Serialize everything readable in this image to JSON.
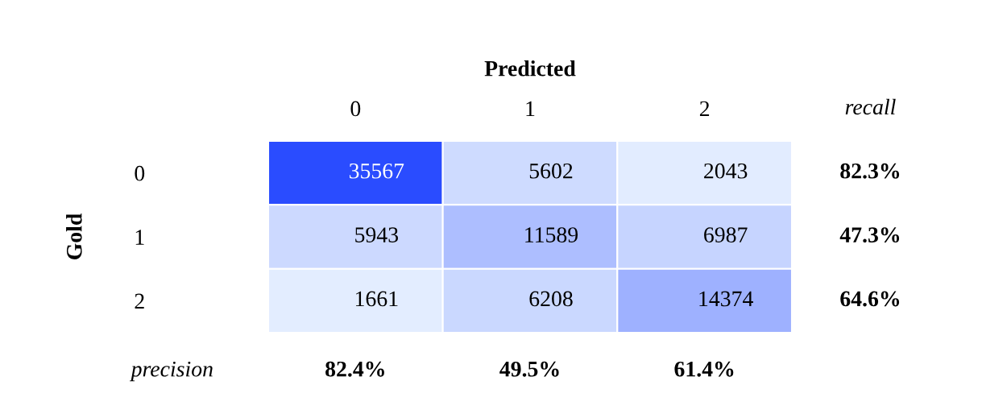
{
  "chart_data": {
    "type": "heatmap",
    "xlabel": "Predicted",
    "ylabel": "Gold",
    "categories": [
      "0",
      "1",
      "2"
    ],
    "y_categories": [
      "0",
      "1",
      "2"
    ],
    "y2_categories": [
      "82.3%",
      "47.3%",
      "64.6%"
    ],
    "cells": [
      [
        35567,
        5602,
        2043
      ],
      [
        5943,
        11589,
        6987
      ],
      [
        1661,
        6208,
        14374
      ]
    ],
    "colors": [
      "#e3edff",
      "#2a4cff"
    ],
    "data_labels": true,
    "annotations": [
      "recall",
      "precision",
      "82.4%",
      "49.5%",
      "61.4%"
    ]
  }
}
